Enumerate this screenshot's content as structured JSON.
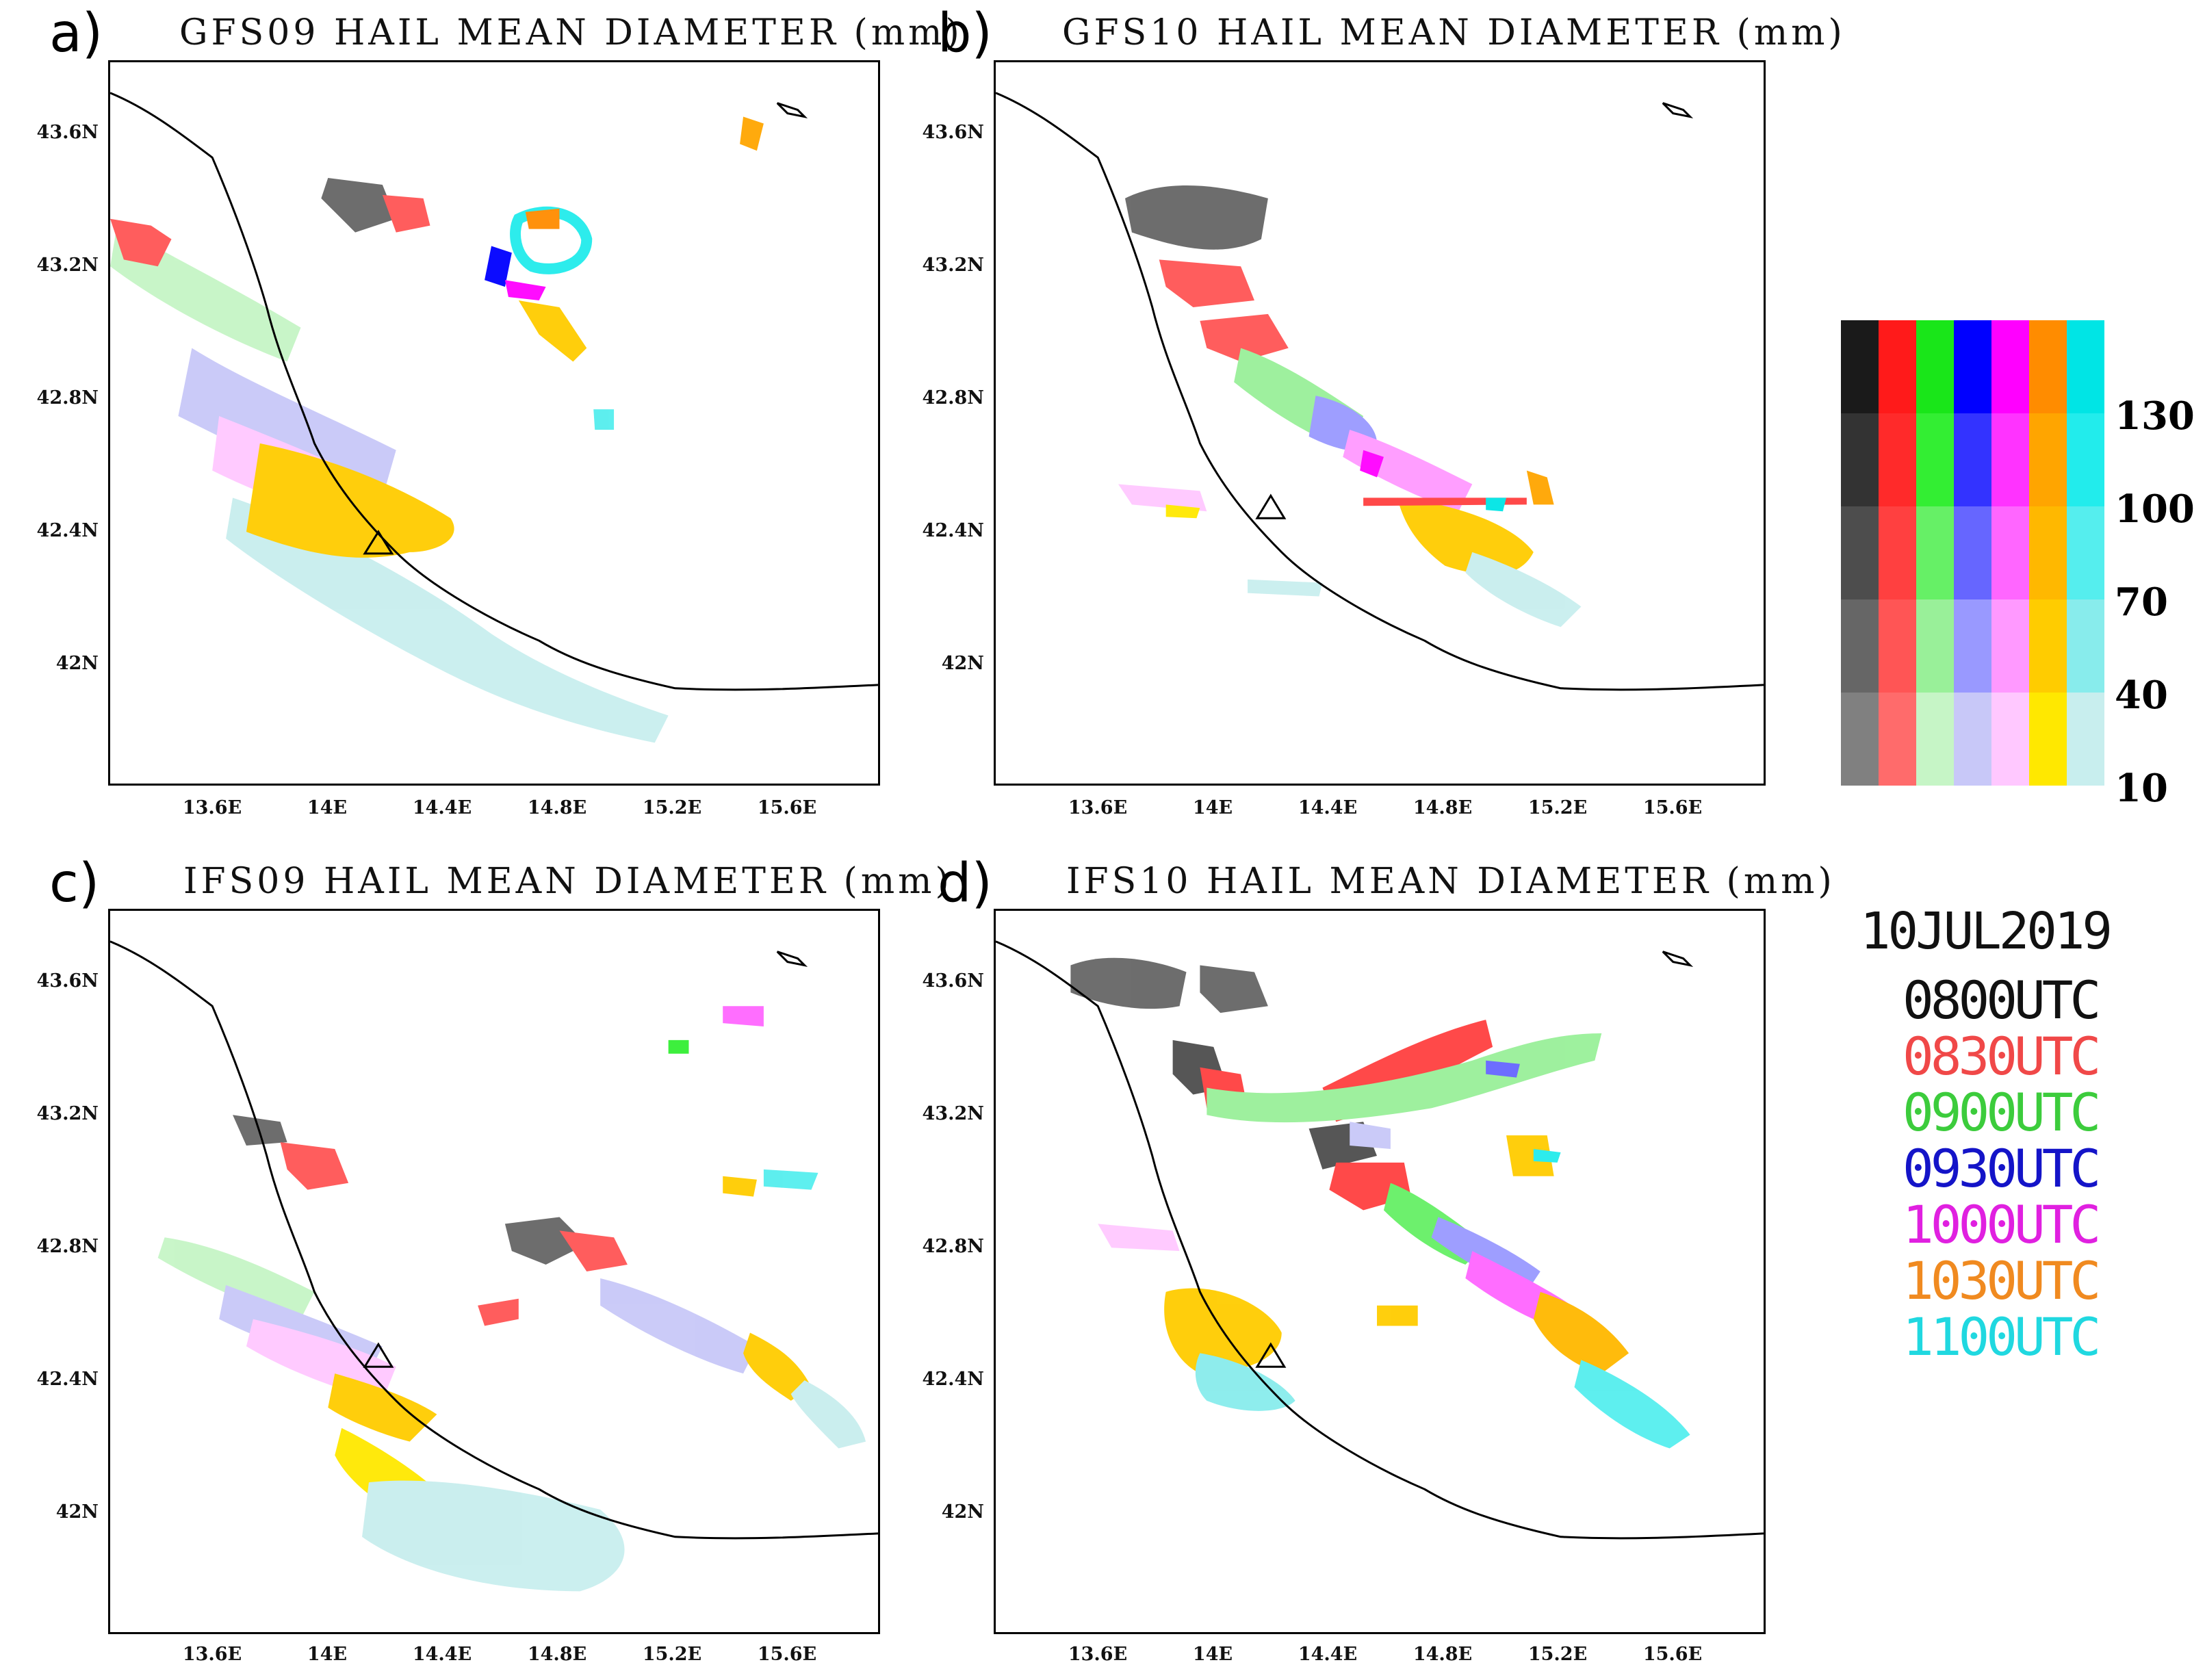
{
  "panels": [
    {
      "letter": "a)",
      "title": "GFS09 HAIL MEAN DIAMETER (mm)"
    },
    {
      "letter": "b)",
      "title": "GFS10 HAIL MEAN DIAMETER (mm)"
    },
    {
      "letter": "c)",
      "title": "IFS09 HAIL MEAN DIAMETER (mm)"
    },
    {
      "letter": "d)",
      "title": "IFS10 HAIL MEAN DIAMETER (mm)"
    }
  ],
  "lat_labels": [
    "43.6N",
    "43.2N",
    "42.8N",
    "42.4N",
    "42N"
  ],
  "lon_labels": [
    "13.6E",
    "14E",
    "14.4E",
    "14.8E",
    "15.2E",
    "15.6E"
  ],
  "colorbar": {
    "scale_labels": [
      "130",
      "100",
      "70",
      "40",
      "10"
    ],
    "columns": [
      {
        "name": "black",
        "shades": [
          "#1a1a1a",
          "#333333",
          "#4d4d4d",
          "#666666",
          "#808080"
        ]
      },
      {
        "name": "red",
        "shades": [
          "#ff1a1a",
          "#ff2a2a",
          "#ff4040",
          "#ff5555",
          "#ff6b6b"
        ]
      },
      {
        "name": "green",
        "shades": [
          "#19e619",
          "#33ee33",
          "#66f066",
          "#99f099",
          "#c6f5c6"
        ]
      },
      {
        "name": "blue",
        "shades": [
          "#0000ff",
          "#3333ff",
          "#6666ff",
          "#9999ff",
          "#c8c8f8"
        ]
      },
      {
        "name": "magenta",
        "shades": [
          "#ff00ff",
          "#ff33ff",
          "#ff66ff",
          "#ff99ff",
          "#ffc8ff"
        ]
      },
      {
        "name": "orange",
        "shades": [
          "#ff8c00",
          "#ffa500",
          "#ffb800",
          "#ffcc00",
          "#ffe800"
        ]
      },
      {
        "name": "cyan",
        "shades": [
          "#00e5e5",
          "#22ecec",
          "#55eeee",
          "#88ecec",
          "#c8eeee"
        ]
      }
    ]
  },
  "date": "10JUL2019",
  "times": [
    {
      "label": "0800UTC",
      "color": "#111111"
    },
    {
      "label": "0830UTC",
      "color": "#f04848"
    },
    {
      "label": "0900UTC",
      "color": "#3ccc3c"
    },
    {
      "label": "0930UTC",
      "color": "#1414c8"
    },
    {
      "label": "1000UTC",
      "color": "#e020e0"
    },
    {
      "label": "1030UTC",
      "color": "#f08a20"
    },
    {
      "label": "1100UTC",
      "color": "#20d8e0"
    }
  ]
}
